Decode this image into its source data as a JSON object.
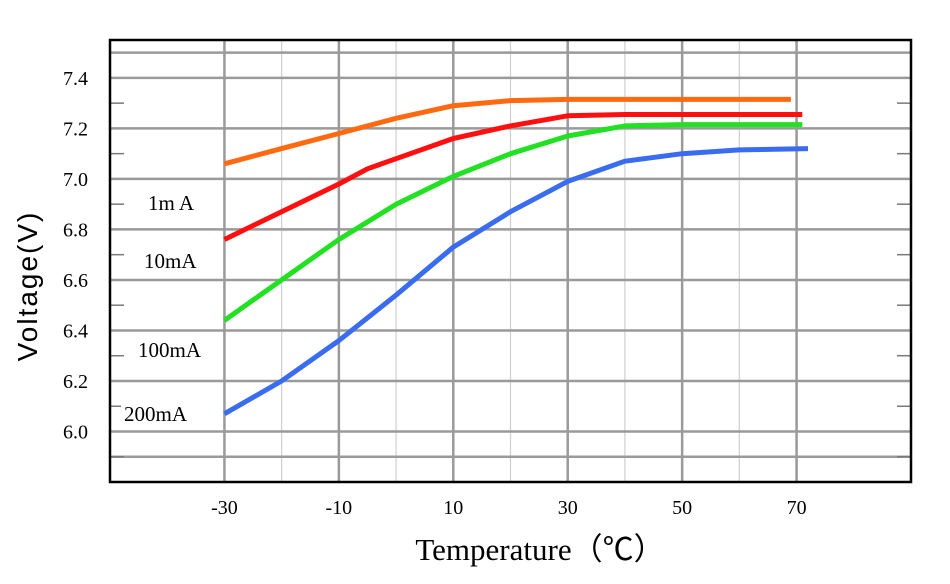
{
  "chart_data": {
    "type": "line",
    "title": "",
    "xlabel": "Temperature（℃）",
    "ylabel": "Voltage(V)",
    "xlim": [
      -50,
      90
    ],
    "ylim": [
      5.8,
      7.55
    ],
    "x_ticks": [
      -30,
      -10,
      10,
      30,
      50,
      70
    ],
    "x_tick_labels": [
      "-30",
      "-10",
      "10",
      "30",
      "50",
      "70"
    ],
    "y_ticks": [
      6.0,
      6.2,
      6.4,
      6.6,
      6.8,
      7.0,
      7.2,
      7.4
    ],
    "y_tick_labels": [
      "6.0",
      "6.2",
      "6.4",
      "6.6",
      "6.8",
      "7.0",
      "7.2",
      "7.4"
    ],
    "grid": true,
    "legend": "none",
    "series": [
      {
        "name": "1m A",
        "color": "#ff6a10",
        "x": [
          -30,
          -20,
          -10,
          0,
          10,
          20,
          30,
          40,
          50,
          60,
          69
        ],
        "y": [
          7.06,
          7.12,
          7.18,
          7.24,
          7.29,
          7.31,
          7.315,
          7.315,
          7.315,
          7.315,
          7.315
        ]
      },
      {
        "name": "10mA",
        "color": "#ff1010",
        "x": [
          -30,
          -20,
          -10,
          -5,
          0,
          10,
          20,
          30,
          40,
          50,
          60,
          71
        ],
        "y": [
          6.76,
          6.87,
          6.98,
          7.04,
          7.08,
          7.16,
          7.21,
          7.25,
          7.255,
          7.255,
          7.255,
          7.255
        ]
      },
      {
        "name": "100mA",
        "color": "#22e022",
        "x": [
          -30,
          -20,
          -10,
          0,
          10,
          20,
          30,
          40,
          50,
          60,
          71
        ],
        "y": [
          6.44,
          6.6,
          6.76,
          6.9,
          7.01,
          7.1,
          7.17,
          7.21,
          7.215,
          7.215,
          7.215
        ]
      },
      {
        "name": "200mA",
        "color": "#3a6cf0",
        "x": [
          -30,
          -20,
          -10,
          0,
          10,
          20,
          30,
          40,
          50,
          60,
          72
        ],
        "y": [
          6.07,
          6.2,
          6.36,
          6.54,
          6.73,
          6.87,
          6.99,
          7.07,
          7.1,
          7.115,
          7.12
        ]
      }
    ],
    "annotations": [
      {
        "text": "1m A",
        "series": 0
      },
      {
        "text": "10mA",
        "series": 1
      },
      {
        "text": "100mA",
        "series": 2
      },
      {
        "text": "200mA",
        "series": 3
      }
    ]
  }
}
